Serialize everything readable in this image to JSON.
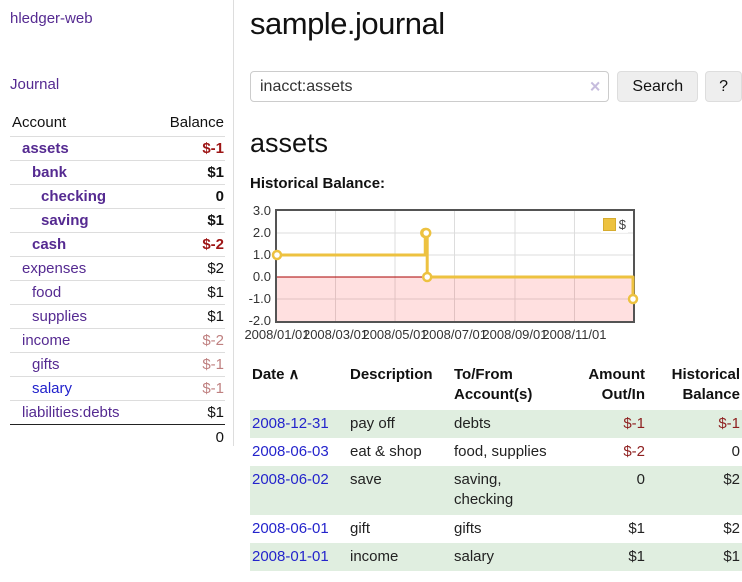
{
  "brand": "hledger-web",
  "nav": {
    "journal": "Journal"
  },
  "accounts": {
    "header_account": "Account",
    "header_balance": "Balance",
    "rows": [
      {
        "name": "assets",
        "depth": 1,
        "bold": true,
        "balance": "$-1",
        "balance_style": "neg-strong"
      },
      {
        "name": "bank",
        "depth": 2,
        "bold": true,
        "balance": "$1",
        "balance_style": "pos"
      },
      {
        "name": "checking",
        "depth": 3,
        "bold": true,
        "balance": "0",
        "balance_style": "pos"
      },
      {
        "name": "saving",
        "depth": 3,
        "bold": true,
        "balance": "$1",
        "balance_style": "pos"
      },
      {
        "name": "cash",
        "depth": 2,
        "bold": true,
        "balance": "$-2",
        "balance_style": "neg-strong"
      },
      {
        "name": "expenses",
        "depth": 1,
        "bold": false,
        "balance": "$2",
        "balance_style": "pos"
      },
      {
        "name": "food",
        "depth": 2,
        "bold": false,
        "balance": "$1",
        "balance_style": "pos"
      },
      {
        "name": "supplies",
        "depth": 2,
        "bold": false,
        "balance": "$1",
        "balance_style": "pos"
      },
      {
        "name": "income",
        "depth": 1,
        "bold": false,
        "balance": "$-2",
        "balance_style": "neg-soft"
      },
      {
        "name": "gifts",
        "depth": 2,
        "bold": false,
        "balance": "$-1",
        "balance_style": "neg-soft"
      },
      {
        "name": "salary",
        "depth": 2,
        "bold": false,
        "balance": "$-1",
        "balance_style": "neg-soft",
        "unvisited": true
      },
      {
        "name": "liabilities:debts",
        "depth": 1,
        "bold": false,
        "balance": "$1",
        "balance_style": "pos"
      }
    ],
    "total": "0"
  },
  "header": {
    "title": "sample.journal"
  },
  "search": {
    "value": "inacct:assets",
    "clear_icon": "×",
    "button_label": "Search",
    "help_label": "?"
  },
  "account_page": {
    "title": "assets",
    "chart_label": "Historical Balance:"
  },
  "chart_data": {
    "type": "line",
    "style": "step-after",
    "title": "Historical Balance",
    "series": [
      {
        "name": "$",
        "color": "#edc240",
        "points": [
          [
            "2008-01-01",
            1
          ],
          [
            "2008-06-01",
            2
          ],
          [
            "2008-06-02",
            2
          ],
          [
            "2008-06-03",
            0
          ],
          [
            "2008-12-31",
            -1
          ]
        ]
      }
    ],
    "x_ticks": [
      "2008/01/01",
      "2008/03/01",
      "2008/05/01",
      "2008/07/01",
      "2008/09/01",
      "2008/11/01"
    ],
    "y_ticks": [
      "3.0",
      "2.0",
      "1.0",
      "0.0",
      "-1.0",
      "-2.0"
    ],
    "ylim": [
      -2,
      3
    ],
    "xlim": [
      "2008-01-01",
      "2008-12-31"
    ],
    "grid": true,
    "negative_region": true,
    "zero_line_color": "#aa0000",
    "legend": {
      "label": "$",
      "position": "top-right"
    }
  },
  "register": {
    "headers": {
      "date": "Date",
      "sort_icon": "∧",
      "description": "Description",
      "accounts": "To/From Account(s)",
      "amount": "Amount Out/In",
      "balance": "Historical Balance"
    },
    "rows": [
      {
        "date": "2008-12-31",
        "description": "pay off",
        "accounts": "debts",
        "amount": "$-1",
        "amount_neg": true,
        "balance": "$-1",
        "balance_neg": true,
        "shaded": true
      },
      {
        "date": "2008-06-03",
        "description": "eat & shop",
        "accounts": "food, supplies",
        "amount": "$-2",
        "amount_neg": true,
        "balance": "0",
        "balance_neg": false,
        "shaded": false
      },
      {
        "date": "2008-06-02",
        "description": "save",
        "accounts": "saving, checking",
        "amount": "0",
        "amount_neg": false,
        "balance": "$2",
        "balance_neg": false,
        "shaded": true
      },
      {
        "date": "2008-06-01",
        "description": "gift",
        "accounts": "gifts",
        "amount": "$1",
        "amount_neg": false,
        "balance": "$2",
        "balance_neg": false,
        "shaded": false
      },
      {
        "date": "2008-01-01",
        "description": "income",
        "accounts": "salary",
        "amount": "$1",
        "amount_neg": false,
        "balance": "$1",
        "balance_neg": false,
        "shaded": true
      }
    ]
  }
}
